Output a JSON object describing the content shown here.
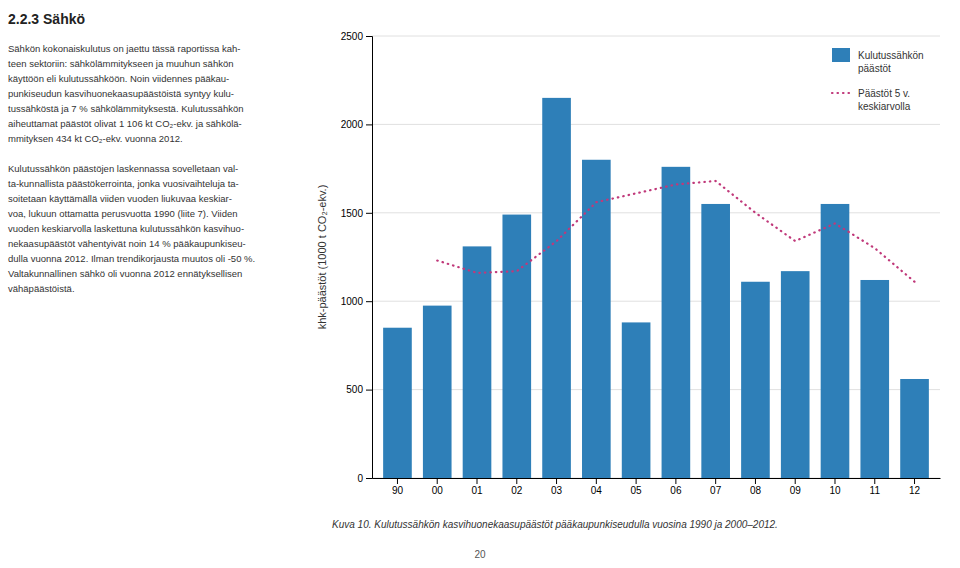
{
  "chart_data": {
    "type": "bar",
    "title": "2.2.3 Sähkö",
    "y_label": "khk-päästöt (1000 t CO₂-ekv.)",
    "categories": [
      "90",
      "00",
      "01",
      "02",
      "03",
      "04",
      "05",
      "06",
      "07",
      "08",
      "09",
      "10",
      "11",
      "12"
    ],
    "series": [
      {
        "name": "Kulutussähkön\npäästöt",
        "type": "bar",
        "color": "#2E7FB8",
        "values": [
          850,
          975,
          1310,
          1490,
          2150,
          1800,
          880,
          1760,
          1550,
          1110,
          1170,
          1550,
          1120,
          560
        ]
      },
      {
        "name": "Päästöt 5 v.\nkeskiarvolla",
        "type": "line",
        "line_style": "dotted",
        "color": "#C0397A",
        "values": [
          null,
          1230,
          1160,
          1170,
          1340,
          1560,
          1610,
          1660,
          1680,
          1500,
          1340,
          1440,
          1300,
          1110
        ]
      }
    ],
    "ylim": [
      0,
      2500
    ],
    "yticks": [
      0,
      500,
      1000,
      1500,
      2000,
      2500
    ],
    "grid": true,
    "legend": "upper right",
    "annotations": [
      "Sähkön kokonaiskulutus on jaettu tässä raportissa kah-\nteen sektoriin: sähkölämmitykseen ja muuhun sähkön\nkäyttöön eli kulutussähköön. Noin viidennes pääkau-\npunkiseudun kasvihuonekaasupäästöistä syntyy kulu-\ntussähköstä ja 7 % sähkölämmityksestä. Kulutussähkön\naiheuttamat päästöt olivat 1 106 kt CO₂-ekv. ja sähkölä-\nmmityksen 434 kt CO₂-ekv. vuonna 2012.",
      "Kulutussähkön päästöjen laskennassa sovelletaan val-\nta-kunnallista päästökerrointa, jonka vuosivaihteluja ta-\nsoitetaan käyttämällä viiden vuoden liukuvaa keskiar-\nvoa, lukuun ottamatta perusvuotta 1990 (liite 7). Viiden\nvuoden keskiarvolla laskettuna kulutussähkön kasvihuo-\nnekaasupäästöt vähentyivät noin 14 % pääkaupunkiseu-\ndulla vuonna 2012. Ilman trendikorjausta muutos oli -50 %.\nValtakunnallinen sähkö oli vuonna 2012 ennätyksellisen\nvähäpäästöistä.",
      "Kuva 10. Kulutussähkön kasvihuonekaasupäästöt pääkaupunkiseudulla vuosina 1990 ja 2000–2012.",
      "20"
    ]
  }
}
